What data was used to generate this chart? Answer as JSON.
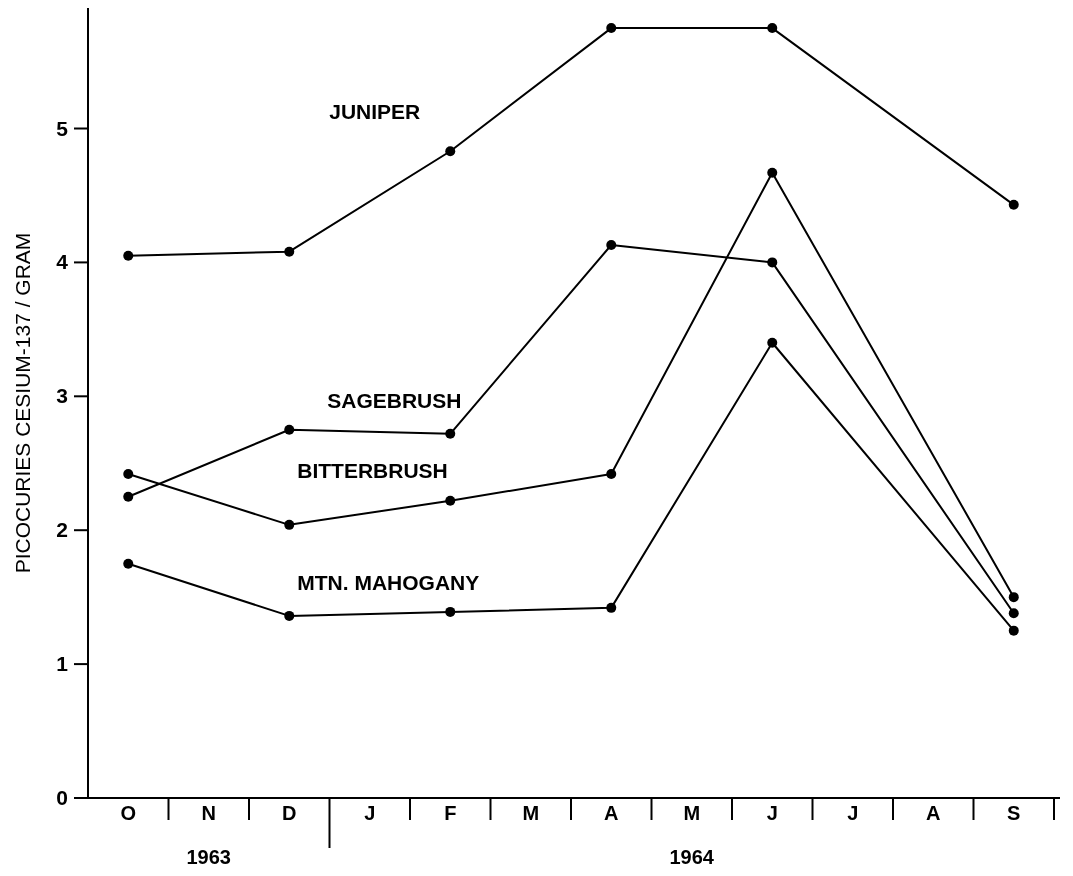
{
  "chart_data": {
    "type": "line",
    "ylabel": "PICOCURIES CESIUM-137 / GRAM",
    "categories": [
      "O",
      "N",
      "D",
      "J",
      "F",
      "M",
      "A",
      "M",
      "J",
      "J",
      "A",
      "S"
    ],
    "series": [
      {
        "name": "JUNIPER",
        "color": "#000000",
        "values": [
          4.05,
          null,
          4.08,
          null,
          4.83,
          null,
          5.75,
          null,
          5.75,
          null,
          null,
          4.43
        ]
      },
      {
        "name": "SAGEBRUSH",
        "color": "#000000",
        "values": [
          2.25,
          null,
          2.75,
          null,
          2.72,
          null,
          4.13,
          null,
          4.0,
          null,
          null,
          1.38
        ]
      },
      {
        "name": "BITTERBRUSH",
        "color": "#000000",
        "values": [
          2.42,
          null,
          2.04,
          null,
          2.22,
          null,
          2.42,
          null,
          4.67,
          null,
          null,
          1.5
        ]
      },
      {
        "name": "MTN.  MAHOGANY",
        "color": "#000000",
        "values": [
          1.75,
          null,
          1.36,
          null,
          1.39,
          null,
          1.42,
          null,
          3.4,
          null,
          null,
          1.25
        ]
      }
    ],
    "annotations": [
      "1963",
      "1964"
    ],
    "ylim": [
      0,
      5.9
    ],
    "yticks": [
      0,
      1,
      2,
      3,
      4,
      5
    ],
    "grid": false,
    "legend": false,
    "marker": "circle",
    "line_style": "solid"
  }
}
